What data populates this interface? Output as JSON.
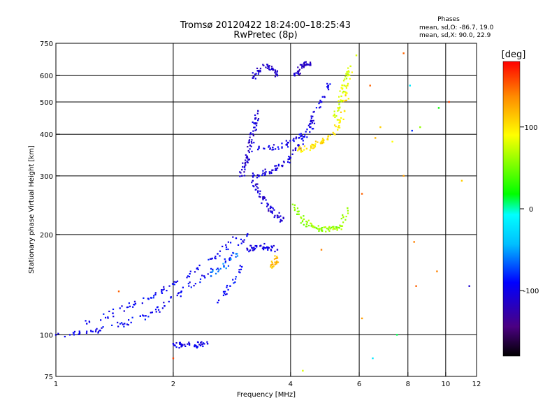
{
  "chart_data": {
    "type": "scatter",
    "title": "Tromsø 20120422 18:24:00–18:25:43",
    "subtitle": "RwPretec (8p)",
    "xlabel": "Frequency [MHz]",
    "ylabel": "Stationary phase Virtual Height [km]",
    "xscale": "log",
    "yscale": "log",
    "xlim": [
      1,
      12
    ],
    "ylim": [
      75,
      750
    ],
    "xticks": [
      1,
      2,
      4,
      6,
      8,
      10,
      12
    ],
    "yticks": [
      75,
      100,
      200,
      300,
      400,
      500,
      600,
      750
    ],
    "x_gridlines": [
      2,
      4,
      6,
      8,
      10
    ],
    "y_gridlines": [
      100,
      200,
      300,
      400,
      500,
      600
    ],
    "grid": true,
    "annotation": {
      "heading": "Phases",
      "line1": "mean, sd,O: -86.7, 19.0",
      "line2": "mean, sd,X: 90.0, 22.9"
    },
    "colorbar": {
      "label": "[deg]",
      "range": [
        -180,
        180
      ],
      "ticks": [
        100,
        0,
        -100
      ],
      "colors": [
        "#000000",
        "#4b0082",
        "#0000ff",
        "#00bfff",
        "#00ffff",
        "#00ff00",
        "#ffff00",
        "#ff8c00",
        "#ff0000"
      ]
    },
    "traces": [
      {
        "phase": -95,
        "x": [
          1.0,
          1.15,
          1.3,
          1.5,
          1.7,
          1.9,
          2.1,
          2.4,
          2.8,
          3.1
        ],
        "y": [
          100,
          101,
          103,
          108,
          114,
          122,
          135,
          150,
          170,
          200
        ]
      },
      {
        "phase": -95,
        "x": [
          1.2,
          1.4,
          1.6,
          1.8,
          2.0,
          2.3,
          2.6,
          2.9
        ],
        "y": [
          108,
          116,
          124,
          132,
          142,
          158,
          175,
          195
        ]
      },
      {
        "phase": -100,
        "x": [
          2.0,
          2.1,
          2.2,
          2.35,
          2.45
        ],
        "y": [
          94,
          93,
          94,
          93,
          94
        ]
      },
      {
        "phase": -110,
        "x": [
          3.0,
          3.05,
          3.1,
          3.15,
          3.2,
          3.25,
          3.3
        ],
        "y": [
          300,
          320,
          340,
          370,
          400,
          430,
          470
        ]
      },
      {
        "phase": -105,
        "x": [
          3.2,
          3.4,
          3.6,
          3.8,
          4.0,
          4.2,
          4.5,
          4.8
        ],
        "y": [
          300,
          305,
          312,
          322,
          340,
          370,
          420,
          500
        ]
      },
      {
        "phase": -100,
        "x": [
          3.3,
          3.6,
          3.9,
          4.2,
          4.5,
          4.8,
          5.0
        ],
        "y": [
          360,
          365,
          372,
          390,
          430,
          500,
          560
        ]
      },
      {
        "phase": -110,
        "x": [
          3.2,
          3.3,
          3.4,
          3.55,
          3.7,
          3.8
        ],
        "y": [
          290,
          270,
          255,
          240,
          228,
          220
        ]
      },
      {
        "phase": -105,
        "x": [
          3.1,
          3.2,
          3.35,
          3.5,
          3.7
        ],
        "y": [
          180,
          182,
          185,
          183,
          180
        ]
      },
      {
        "phase": -110,
        "x": [
          3.2,
          3.3,
          3.5,
          3.6,
          3.7
        ],
        "y": [
          590,
          620,
          640,
          630,
          600
        ]
      },
      {
        "phase": -115,
        "x": [
          4.1,
          4.2,
          4.3,
          4.4,
          4.5
        ],
        "y": [
          600,
          620,
          640,
          650,
          645
        ]
      },
      {
        "phase": 100,
        "x": [
          4.2,
          4.4,
          4.6,
          4.8,
          5.0,
          5.3,
          5.5,
          5.6
        ],
        "y": [
          360,
          362,
          370,
          380,
          395,
          420,
          470,
          560
        ]
      },
      {
        "phase": 80,
        "x": [
          5.2,
          5.3,
          5.4,
          5.5,
          5.6,
          5.7
        ],
        "y": [
          450,
          480,
          520,
          560,
          600,
          640
        ]
      },
      {
        "phase": 60,
        "x": [
          4.1,
          4.2,
          4.4,
          4.6,
          4.8,
          5.0,
          5.2,
          5.4,
          5.6
        ],
        "y": [
          245,
          230,
          215,
          210,
          208,
          207,
          208,
          212,
          240
        ]
      },
      {
        "phase": 120,
        "x": [
          3.6,
          3.65,
          3.7
        ],
        "y": [
          160,
          165,
          170
        ]
      },
      {
        "phase": -90,
        "x": [
          2.6,
          2.8,
          3.0
        ],
        "y": [
          125,
          140,
          160
        ]
      },
      {
        "phase": -60,
        "x": [
          2.5,
          2.7,
          2.9
        ],
        "y": [
          150,
          160,
          175
        ]
      }
    ],
    "scatter_points": [
      {
        "x": 6.6,
        "y": 390,
        "phase": 120
      },
      {
        "x": 6.8,
        "y": 420,
        "phase": 110
      },
      {
        "x": 7.3,
        "y": 380,
        "phase": 90
      },
      {
        "x": 8.2,
        "y": 410,
        "phase": -80
      },
      {
        "x": 8.6,
        "y": 420,
        "phase": 60
      },
      {
        "x": 7.8,
        "y": 300,
        "phase": 130
      },
      {
        "x": 8.3,
        "y": 190,
        "phase": 140
      },
      {
        "x": 8.4,
        "y": 140,
        "phase": 150
      },
      {
        "x": 10.2,
        "y": 500,
        "phase": 160
      },
      {
        "x": 6.4,
        "y": 560,
        "phase": 150
      },
      {
        "x": 5.9,
        "y": 690,
        "phase": 80
      },
      {
        "x": 7.8,
        "y": 700,
        "phase": 150
      },
      {
        "x": 8.1,
        "y": 560,
        "phase": -20
      },
      {
        "x": 9.6,
        "y": 480,
        "phase": 20
      },
      {
        "x": 11.5,
        "y": 140,
        "phase": -110
      },
      {
        "x": 6.5,
        "y": 85,
        "phase": -20
      },
      {
        "x": 4.3,
        "y": 78,
        "phase": 80
      },
      {
        "x": 4.8,
        "y": 180,
        "phase": 140
      },
      {
        "x": 1.45,
        "y": 135,
        "phase": 150
      },
      {
        "x": 2.0,
        "y": 85,
        "phase": 160
      },
      {
        "x": 11.0,
        "y": 290,
        "phase": 110
      },
      {
        "x": 6.1,
        "y": 265,
        "phase": 150
      },
      {
        "x": 7.5,
        "y": 100,
        "phase": 10
      },
      {
        "x": 9.5,
        "y": 155,
        "phase": 140
      },
      {
        "x": 6.1,
        "y": 112,
        "phase": 130
      }
    ]
  }
}
